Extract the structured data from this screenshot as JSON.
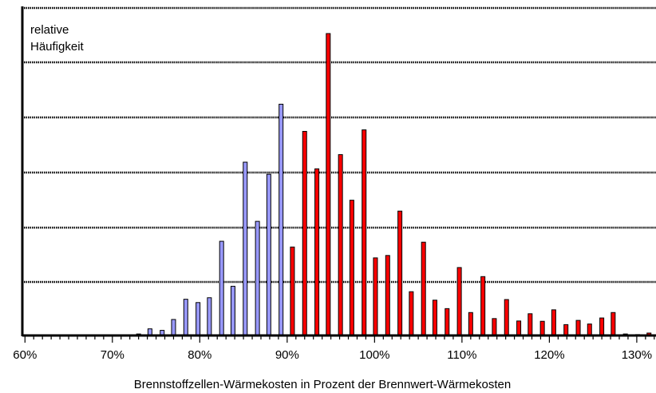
{
  "chart_data": {
    "type": "bar",
    "ylabel_lines": [
      "relative",
      "Häufigkeit"
    ],
    "xlabel": "Brennstoffzellen-Wärmekosten in Prozent der Brennwert-Wärmekosten",
    "x_tick_labels": [
      "60%",
      "70%",
      "80%",
      "90%",
      "100%",
      "110%",
      "120%",
      "130%"
    ],
    "x_ticks": [
      60,
      70,
      80,
      90,
      100,
      110,
      120,
      130
    ],
    "xlim": [
      59.7,
      132.2
    ],
    "ylim": [
      0,
      100
    ],
    "grid": "horizontal dotted",
    "colors": {
      "below_100": "#9999ff",
      "above_100": "#ff0000",
      "outline": "#000000"
    },
    "series": [
      {
        "color_key": "below_100",
        "x": [
          73.0,
          74.3,
          75.7,
          77.0,
          78.4,
          79.8,
          81.1,
          82.5,
          83.8,
          85.2,
          86.6,
          87.9,
          89.3
        ],
        "values": [
          0.5,
          2.2,
          1.7,
          5.3,
          12.0,
          10.9,
          12.5,
          31.2,
          16.3,
          57.4,
          37.8,
          53.4,
          76.6
        ]
      },
      {
        "color_key": "above_100",
        "x": [
          90.6,
          92.0,
          93.4,
          94.7,
          96.1,
          97.4,
          98.8,
          100.1,
          101.5,
          102.9,
          104.2,
          105.6,
          106.9,
          108.3,
          109.7,
          111.0,
          112.4,
          113.7,
          115.1,
          116.5,
          117.8,
          119.2,
          120.5,
          121.9,
          123.3,
          124.6,
          126.0,
          127.3,
          128.7,
          130.1,
          131.4
        ],
        "values": [
          29.3,
          67.6,
          55.2,
          100.0,
          59.9,
          44.8,
          68.1,
          25.7,
          26.5,
          41.2,
          14.5,
          30.9,
          11.7,
          8.9,
          22.5,
          7.6,
          19.5,
          5.6,
          11.9,
          4.8,
          7.2,
          4.7,
          8.5,
          3.6,
          5.0,
          3.8,
          5.8,
          7.6,
          0.5,
          0.3,
          0.8
        ]
      }
    ]
  }
}
